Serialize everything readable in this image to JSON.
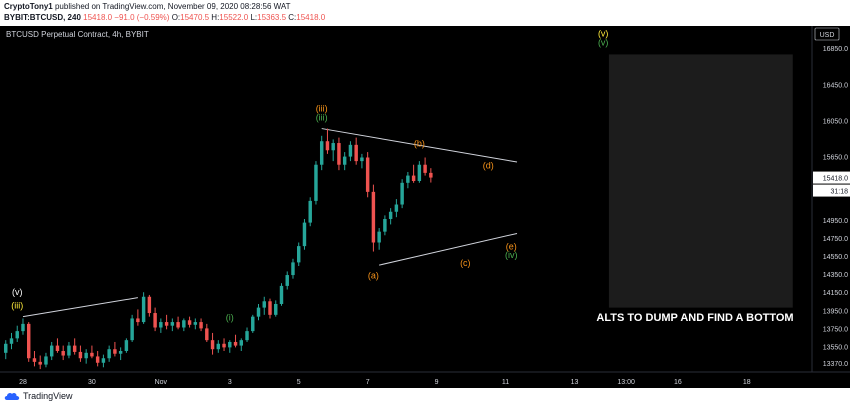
{
  "header": {
    "author": "CryptoTony1",
    "published_text": "published on TradingView.com, November 09, 2020 08:28:56 WAT",
    "symbol_line": "BYBIT:BTCUSD, 240",
    "last": "15418.0",
    "change": "−91.0 (−0.59%)",
    "o_label": "O:",
    "o_val": "15470.5",
    "h_label": "H:",
    "h_val": "15522.0",
    "l_label": "L:",
    "l_val": "15363.5",
    "c_label": "C:",
    "c_val": "15418.0"
  },
  "footer": {
    "brand": "TradingView"
  },
  "colors": {
    "up": "#26a69a",
    "down": "#ef5350",
    "bg": "#000000",
    "orange": "#f7931a",
    "green": "#4caf50",
    "yellow": "#ffeb3b"
  },
  "chart_data": {
    "type": "candlestick",
    "title": "BTCUSD Perpetual Contract, 4h, BYBIT",
    "currency": "USD",
    "y_ticks": [
      "16850.0",
      "16450.0",
      "16050.0",
      "15650.0",
      "15418.0",
      "14950.0",
      "14750.0",
      "14550.0",
      "14350.0",
      "14150.0",
      "13950.0",
      "13750.0",
      "13550.0",
      "13370.0"
    ],
    "y_tick_values": [
      16850,
      16450,
      16050,
      15650,
      15418,
      14950,
      14750,
      14550,
      14350,
      14150,
      13950,
      13750,
      13550,
      13370
    ],
    "ylim": [
      13290,
      17050
    ],
    "x_ticks": [
      {
        "label": "28",
        "x": 0
      },
      {
        "label": "30",
        "x": 12
      },
      {
        "label": "Nov",
        "x": 24
      },
      {
        "label": "3",
        "x": 36
      },
      {
        "label": "5",
        "x": 48
      },
      {
        "label": "7",
        "x": 60
      },
      {
        "label": "9",
        "x": 72
      },
      {
        "label": "11",
        "x": 84
      },
      {
        "label": "13",
        "x": 96
      },
      {
        "label": "13:00",
        "x": 105
      },
      {
        "label": "16",
        "x": 114
      },
      {
        "label": "18",
        "x": 126
      }
    ],
    "xlim": [
      -4,
      137
    ],
    "last_price": {
      "label": "15418.0",
      "value": 15418
    },
    "countdown": "31:18",
    "candles": [
      [
        -3,
        13480,
        13620,
        13410,
        13580
      ],
      [
        -2,
        13580,
        13700,
        13520,
        13640
      ],
      [
        -1,
        13640,
        13780,
        13600,
        13720
      ],
      [
        0,
        13720,
        13860,
        13680,
        13800
      ],
      [
        1,
        13800,
        13820,
        13380,
        13420
      ],
      [
        2,
        13420,
        13500,
        13330,
        13380
      ],
      [
        3,
        13380,
        13450,
        13300,
        13350
      ],
      [
        4,
        13350,
        13480,
        13320,
        13440
      ],
      [
        5,
        13440,
        13600,
        13400,
        13560
      ],
      [
        6,
        13560,
        13640,
        13480,
        13500
      ],
      [
        7,
        13500,
        13560,
        13400,
        13450
      ],
      [
        8,
        13450,
        13600,
        13420,
        13560
      ],
      [
        9,
        13560,
        13640,
        13460,
        13490
      ],
      [
        10,
        13490,
        13560,
        13380,
        13420
      ],
      [
        11,
        13420,
        13520,
        13360,
        13480
      ],
      [
        12,
        13480,
        13560,
        13420,
        13440
      ],
      [
        13,
        13440,
        13500,
        13330,
        13370
      ],
      [
        14,
        13370,
        13460,
        13320,
        13420
      ],
      [
        15,
        13420,
        13560,
        13380,
        13520
      ],
      [
        16,
        13520,
        13600,
        13440,
        13470
      ],
      [
        17,
        13470,
        13540,
        13400,
        13500
      ],
      [
        18,
        13500,
        13640,
        13480,
        13620
      ],
      [
        19,
        13620,
        13900,
        13600,
        13860
      ],
      [
        20,
        13860,
        13960,
        13780,
        13820
      ],
      [
        21,
        13820,
        14150,
        13800,
        14100
      ],
      [
        22,
        14100,
        14120,
        13880,
        13920
      ],
      [
        23,
        13920,
        13980,
        13720,
        13760
      ],
      [
        24,
        13760,
        13860,
        13700,
        13820
      ],
      [
        25,
        13820,
        13900,
        13740,
        13780
      ],
      [
        26,
        13780,
        13860,
        13720,
        13820
      ],
      [
        27,
        13820,
        13880,
        13740,
        13760
      ],
      [
        28,
        13760,
        13860,
        13720,
        13840
      ],
      [
        29,
        13840,
        13880,
        13760,
        13790
      ],
      [
        30,
        13790,
        13860,
        13740,
        13820
      ],
      [
        31,
        13820,
        13860,
        13720,
        13750
      ],
      [
        32,
        13750,
        13800,
        13600,
        13620
      ],
      [
        33,
        13620,
        13700,
        13460,
        13520
      ],
      [
        34,
        13520,
        13620,
        13480,
        13580
      ],
      [
        35,
        13580,
        13640,
        13500,
        13540
      ],
      [
        36,
        13540,
        13620,
        13480,
        13600
      ],
      [
        37,
        13600,
        13680,
        13540,
        13560
      ],
      [
        38,
        13560,
        13640,
        13500,
        13620
      ],
      [
        39,
        13620,
        13760,
        13600,
        13720
      ],
      [
        40,
        13720,
        13900,
        13700,
        13880
      ],
      [
        41,
        13880,
        14020,
        13840,
        13980
      ],
      [
        42,
        13980,
        14100,
        13900,
        14050
      ],
      [
        43,
        14050,
        14080,
        13860,
        13900
      ],
      [
        44,
        13900,
        14060,
        13880,
        14020
      ],
      [
        45,
        14020,
        14250,
        14000,
        14220
      ],
      [
        46,
        14220,
        14380,
        14180,
        14340
      ],
      [
        47,
        14340,
        14520,
        14300,
        14480
      ],
      [
        48,
        14480,
        14700,
        14440,
        14660
      ],
      [
        49,
        14660,
        14960,
        14620,
        14920
      ],
      [
        50,
        14920,
        15200,
        14880,
        15160
      ],
      [
        51,
        15160,
        15600,
        15120,
        15560
      ],
      [
        52,
        15560,
        15880,
        15500,
        15820
      ],
      [
        53,
        15820,
        15960,
        15680,
        15720
      ],
      [
        54,
        15720,
        15840,
        15600,
        15800
      ],
      [
        55,
        15800,
        15860,
        15500,
        15560
      ],
      [
        56,
        15560,
        15700,
        15500,
        15650
      ],
      [
        57,
        15650,
        15820,
        15600,
        15780
      ],
      [
        58,
        15780,
        15860,
        15560,
        15600
      ],
      [
        59,
        15600,
        15680,
        15520,
        15640
      ],
      [
        60,
        15640,
        15700,
        15200,
        15260
      ],
      [
        61,
        15260,
        15340,
        14600,
        14700
      ],
      [
        62,
        14700,
        14860,
        14620,
        14820
      ],
      [
        63,
        14820,
        15000,
        14780,
        14960
      ],
      [
        64,
        14960,
        15080,
        14900,
        15040
      ],
      [
        65,
        15040,
        15180,
        14980,
        15120
      ],
      [
        66,
        15120,
        15400,
        15080,
        15360
      ],
      [
        67,
        15360,
        15480,
        15300,
        15440
      ],
      [
        68,
        15440,
        15560,
        15360,
        15380
      ],
      [
        69,
        15380,
        15600,
        15360,
        15560
      ],
      [
        70,
        15560,
        15640,
        15440,
        15470
      ],
      [
        71,
        15470,
        15522,
        15363,
        15418
      ]
    ],
    "annotations": [
      {
        "text": "(iii)",
        "x": 52,
        "y": 16150,
        "color": "#f7931a"
      },
      {
        "text": "(iii)",
        "x": 52,
        "y": 16050,
        "color": "#4caf50"
      },
      {
        "text": "(b)",
        "x": 69,
        "y": 15760,
        "color": "#f7931a"
      },
      {
        "text": "(d)",
        "x": 81,
        "y": 15520,
        "color": "#f7931a"
      },
      {
        "text": "(a)",
        "x": 61,
        "y": 14300,
        "color": "#f7931a"
      },
      {
        "text": "(c)",
        "x": 77,
        "y": 14440,
        "color": "#f7931a"
      },
      {
        "text": "(e)",
        "x": 85,
        "y": 14620,
        "color": "#f7931a"
      },
      {
        "text": "(iv)",
        "x": 85,
        "y": 14530,
        "color": "#4caf50"
      },
      {
        "text": "(v)",
        "x": 101,
        "y": 16980,
        "color": "#ffeb3b"
      },
      {
        "text": "(v)",
        "x": 101,
        "y": 16880,
        "color": "#4caf50"
      },
      {
        "text": "(i)",
        "x": 36,
        "y": 13840,
        "color": "#4caf50"
      },
      {
        "text": "(v)",
        "x": -1,
        "y": 14120,
        "color": "#ffffff"
      },
      {
        "text": "(iii)",
        "x": -1,
        "y": 13970,
        "color": "#ffeb3b"
      }
    ],
    "trendlines": [
      {
        "from": [
          52,
          15960
        ],
        "to": [
          86,
          15590
        ]
      },
      {
        "from": [
          62,
          14450
        ],
        "to": [
          86,
          14800
        ]
      },
      {
        "from": [
          0,
          13880
        ],
        "to": [
          20,
          14090
        ]
      }
    ],
    "box": {
      "x0": 102,
      "x1": 134,
      "y0": 13980,
      "y1": 16780,
      "color": "#1c1c1c"
    },
    "callout": "ALTS TO DUMP AND FIND A BOTTOM"
  }
}
